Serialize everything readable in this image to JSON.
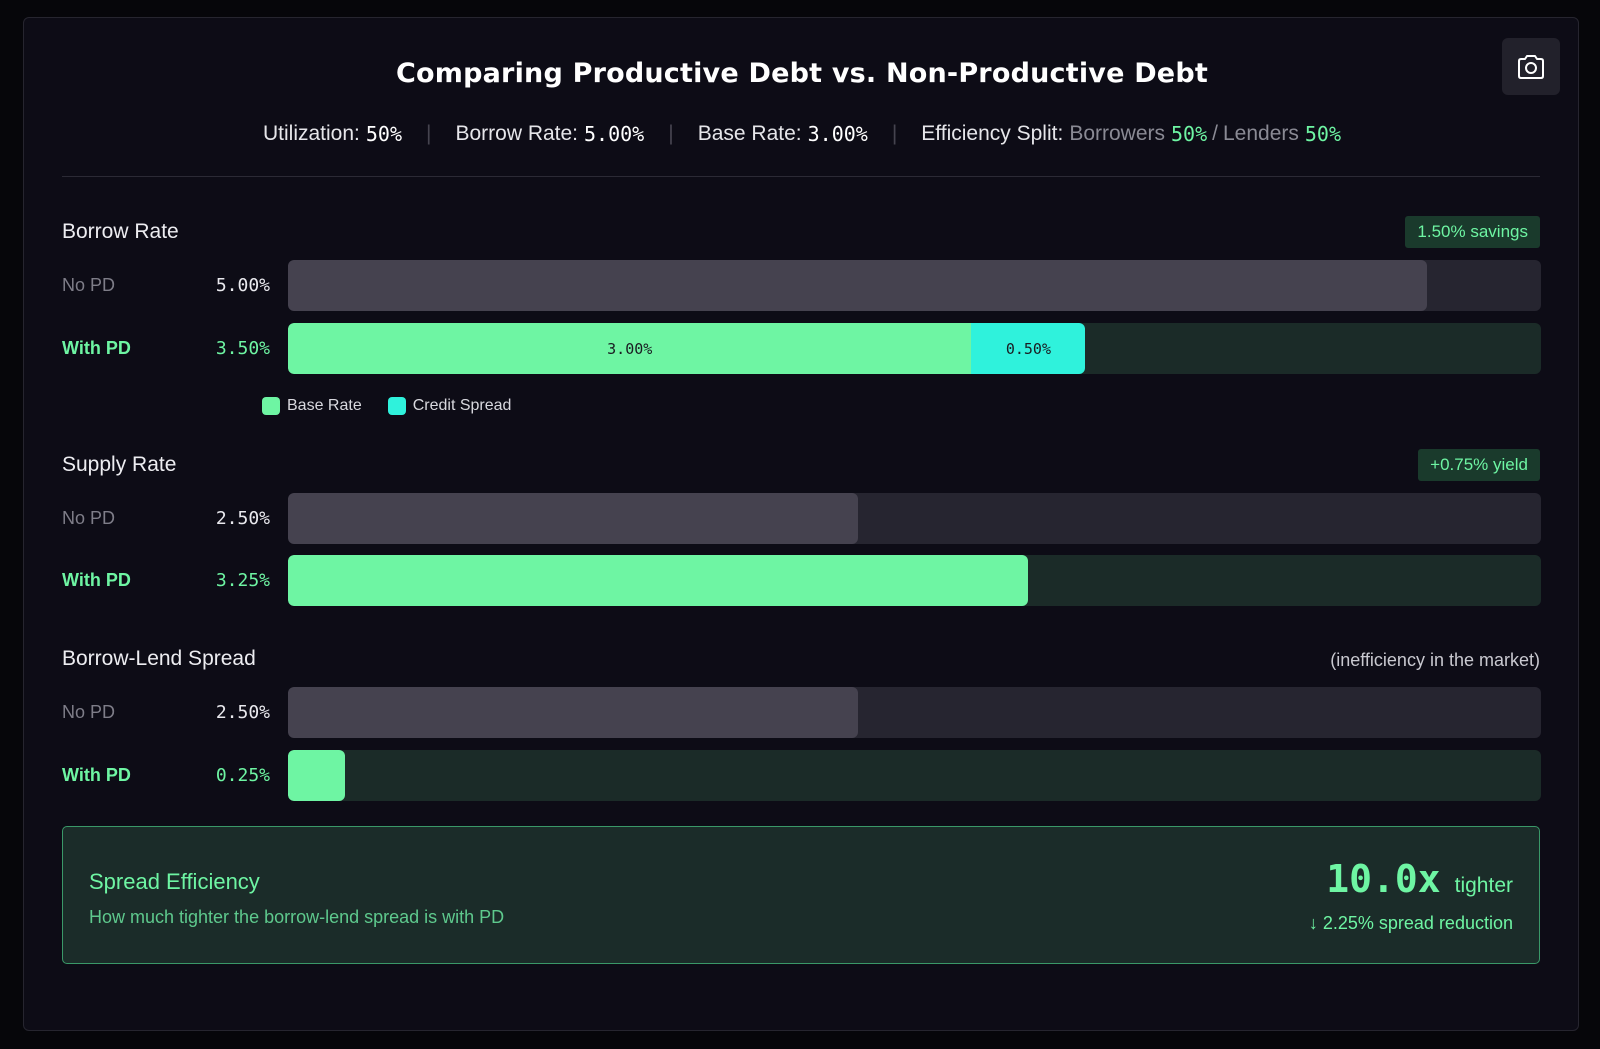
{
  "title": "Comparing Productive Debt vs. Non-Productive Debt",
  "summary": {
    "utilization_label": "Utilization:",
    "utilization": "50%",
    "borrow_rate_label": "Borrow Rate:",
    "borrow_rate": "5.00%",
    "base_rate_label": "Base Rate:",
    "base_rate": "3.00%",
    "efficiency_label": "Efficiency Split:",
    "borrowers_label": "Borrowers",
    "borrowers": "50%",
    "slash": "/",
    "lenders_label": "Lenders",
    "lenders": "50%",
    "separator": "|"
  },
  "colors": {
    "green": "#6ef5a3",
    "cyan": "#2ff2dc",
    "gray_bar": "#45424f",
    "track_nopd": "#262530",
    "track_withpd": "#1b2b28"
  },
  "icons": {
    "camera": "camera-icon"
  },
  "chart_data": {
    "type": "bar",
    "orientation": "horizontal",
    "scale_max": 5.5,
    "unit": "%",
    "legend": [
      "Base Rate",
      "Credit Spread"
    ],
    "groups": [
      {
        "key": "borrow",
        "title": "Borrow Rate",
        "badge": "1.50% savings",
        "rows": [
          {
            "label": "No PD",
            "value_label": "5.00%",
            "segments": [
              {
                "value": 5.0,
                "color": "gray",
                "label": ""
              }
            ]
          },
          {
            "label": "With PD",
            "value_label": "3.50%",
            "segments": [
              {
                "value": 3.0,
                "color": "green",
                "label": "3.00%"
              },
              {
                "value": 0.5,
                "color": "cyan",
                "label": "0.50%"
              }
            ]
          }
        ]
      },
      {
        "key": "supply",
        "title": "Supply Rate",
        "badge": "+0.75% yield",
        "rows": [
          {
            "label": "No PD",
            "value_label": "2.50%",
            "segments": [
              {
                "value": 2.5,
                "color": "gray",
                "label": ""
              }
            ]
          },
          {
            "label": "With PD",
            "value_label": "3.25%",
            "segments": [
              {
                "value": 3.25,
                "color": "green",
                "label": ""
              }
            ]
          }
        ]
      },
      {
        "key": "spread",
        "title": "Borrow-Lend Spread",
        "note": "(inefficiency in the market)",
        "rows": [
          {
            "label": "No PD",
            "value_label": "2.50%",
            "segments": [
              {
                "value": 2.5,
                "color": "gray",
                "label": ""
              }
            ]
          },
          {
            "label": "With PD",
            "value_label": "0.25%",
            "segments": [
              {
                "value": 0.25,
                "color": "green",
                "label": ""
              }
            ]
          }
        ]
      }
    ]
  },
  "efficiency": {
    "title": "Spread Efficiency",
    "subtitle": "How much tighter the borrow-lend spread is with PD",
    "multiplier": "10.0x",
    "multiplier_unit": "tighter",
    "reduction": "↓ 2.25% spread reduction"
  }
}
